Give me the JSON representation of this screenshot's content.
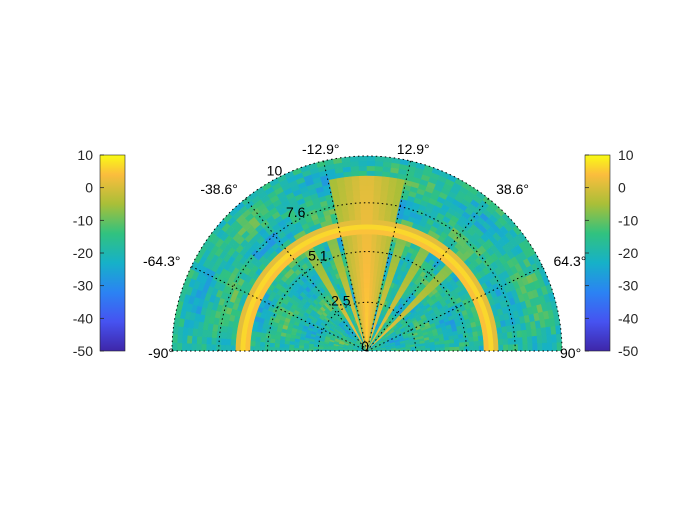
{
  "chart_data": {
    "type": "heatmap",
    "projection": "polar-half",
    "angle_ticks": [
      "-90°",
      "-64.3°",
      "-38.6°",
      "-12.9°",
      "12.9°",
      "38.6°",
      "64.3°",
      "90°"
    ],
    "angle_tick_values": [
      -90,
      -64.3,
      -38.6,
      -12.9,
      12.9,
      38.6,
      64.3,
      90
    ],
    "range_ticks": [
      "0",
      "2.5",
      "5.1",
      "7.6",
      "10"
    ],
    "range_tick_values": [
      0,
      2.5,
      5.1,
      7.6,
      10
    ],
    "range_lim": [
      0,
      10
    ],
    "angle_lim": [
      -90,
      90
    ],
    "colorbar_left": {
      "ticks": [
        "10",
        "0",
        "-10",
        "-20",
        "-30",
        "-40",
        "-50"
      ],
      "lim": [
        -50,
        10
      ]
    },
    "colorbar_right": {
      "ticks": [
        "10",
        "0",
        "-10",
        "-20",
        "-30",
        "-40",
        "-50"
      ],
      "lim": [
        -50,
        10
      ]
    },
    "colormap": "parula",
    "grid": true,
    "features": [
      {
        "kind": "arc",
        "range": 6.3,
        "value": 8
      },
      {
        "kind": "central-lobe",
        "angle_span": [
          -12,
          12
        ],
        "value": 7
      },
      {
        "kind": "spokes",
        "value": 4
      }
    ],
    "background_value": -18
  },
  "colors": {
    "grid": "#000000",
    "text": "#262626",
    "parula_low": "#3e26a8",
    "parula_high": "#f9fb15"
  }
}
